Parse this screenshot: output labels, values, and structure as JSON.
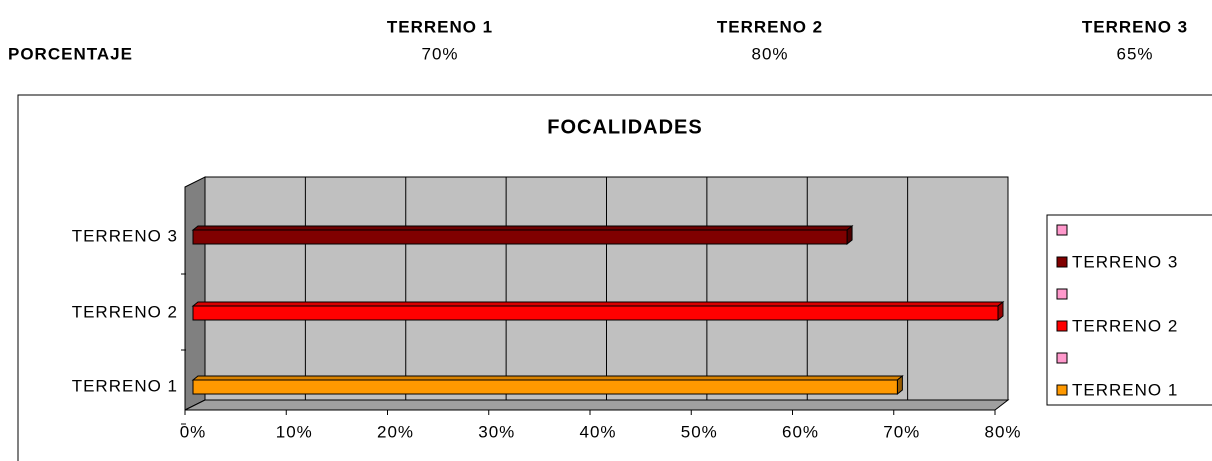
{
  "table": {
    "columns": [
      "TERRENO 1",
      "TERRENO 2",
      "TERRENO 3"
    ],
    "row_label": "PORCENTAJE",
    "cells": [
      "70%",
      "80%",
      "65%"
    ]
  },
  "chart_data": {
    "type": "bar",
    "orientation": "horizontal",
    "title": "FOCALIDADES",
    "categories": [
      "TERRENO 1",
      "TERRENO 2",
      "TERRENO 3"
    ],
    "values": [
      70,
      80,
      65
    ],
    "colors": [
      "#ff9900",
      "#ff0000",
      "#800000"
    ],
    "xlim": [
      0,
      80
    ],
    "xticks": [
      {
        "value": 0,
        "label": "0%"
      },
      {
        "value": 10,
        "label": "10%"
      },
      {
        "value": 20,
        "label": "20%"
      },
      {
        "value": 30,
        "label": "30%"
      },
      {
        "value": 40,
        "label": "40%"
      },
      {
        "value": 50,
        "label": "50%"
      },
      {
        "value": 60,
        "label": "60%"
      },
      {
        "value": 70,
        "label": "70%"
      },
      {
        "value": 80,
        "label": "80%"
      }
    ],
    "grid": true
  }
}
